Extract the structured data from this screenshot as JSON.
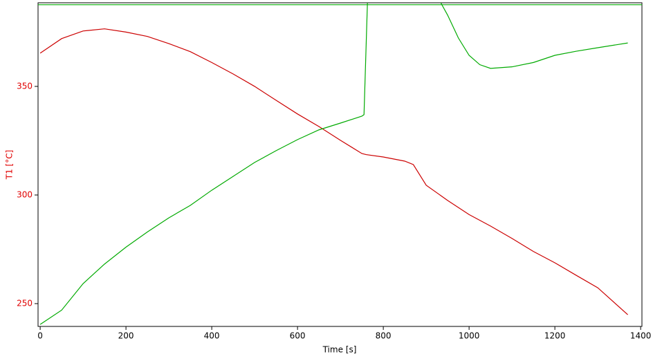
{
  "chart_data": {
    "type": "line",
    "xlabel": "Time [s]",
    "ylabel": "T1  [°C]",
    "ylabel_color": "#e00000",
    "xlim": [
      -5,
      1403
    ],
    "ylim": [
      239.5,
      388.5
    ],
    "xticks": [
      0,
      200,
      400,
      600,
      800,
      1000,
      1200,
      1400
    ],
    "yticks": [
      250,
      300,
      350
    ],
    "series": [
      {
        "color": "#cc0000",
        "x": [
          0,
          50,
          100,
          150,
          200,
          250,
          300,
          350,
          400,
          450,
          500,
          550,
          600,
          650,
          700,
          750,
          760,
          800,
          850,
          870,
          900,
          950,
          1000,
          1050,
          1100,
          1150,
          1200,
          1250,
          1300,
          1370
        ],
        "values": [
          365.3,
          372,
          375.5,
          376.5,
          375,
          373,
          369.7,
          366,
          361,
          355.7,
          350,
          343.6,
          337.3,
          331.5,
          325.2,
          319.1,
          318.6,
          317.5,
          315.6,
          314,
          304.5,
          297.5,
          291,
          285.7,
          280,
          274,
          268.8,
          263,
          257.3,
          244.9
        ]
      },
      {
        "color": "#00aa00",
        "x": [
          0,
          50,
          100,
          150,
          200,
          250,
          300,
          350,
          400,
          450,
          500,
          550,
          600,
          650,
          700,
          750,
          755,
          763,
          850,
          934,
          950,
          975,
          1000,
          1025,
          1050,
          1100,
          1150,
          1200,
          1250,
          1300,
          1370
        ],
        "values": [
          240.4,
          247,
          259.2,
          268.2,
          276,
          283,
          289.5,
          295.2,
          302.2,
          308.6,
          315,
          320.4,
          325.5,
          330,
          333.1,
          336.3,
          337,
          388.5,
          null,
          388.5,
          382.8,
          372.3,
          364.3,
          360,
          358.3,
          359,
          361,
          364.3,
          366.2,
          367.8,
          370
        ]
      },
      {
        "color": "#00aa00",
        "x": [
          -5,
          1403
        ],
        "values": [
          387.6,
          387.6
        ]
      }
    ]
  }
}
